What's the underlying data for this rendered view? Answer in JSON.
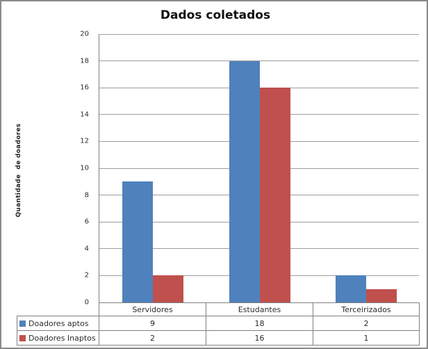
{
  "title": "Dados coletados",
  "y_axis_label": "Quantidade  de doadores",
  "colors": {
    "series_blue": "#4F81BD",
    "series_red": "#C0504D",
    "gridline": "#9d9d9d",
    "axis_border": "#808080",
    "outer_border": "#8a8a8a",
    "text": "#2b2b2b"
  },
  "chart_data": {
    "type": "bar",
    "title": "Dados coletados",
    "categories": [
      "Servidores",
      "Estudantes",
      "Terceirizados"
    ],
    "series": [
      {
        "name": "Doadores aptos",
        "color": "#4F81BD",
        "values": [
          9,
          18,
          2
        ]
      },
      {
        "name": "Doadores Inaptos",
        "color": "#C0504D",
        "values": [
          2,
          16,
          1
        ]
      }
    ],
    "xlabel": "",
    "ylabel": "Quantidade  de doadores",
    "ylim": [
      0,
      20
    ],
    "ytick_step": 2,
    "grid": true,
    "legend_position": "data-table-left"
  }
}
